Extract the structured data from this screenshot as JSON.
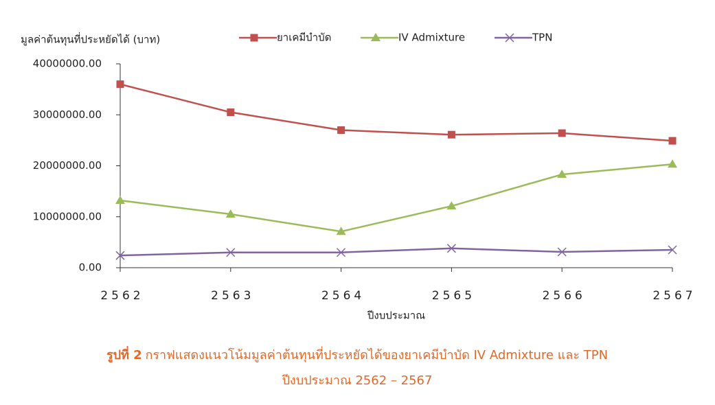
{
  "chart_data": {
    "type": "line",
    "y_label": "มูลค่าต้นทุนที่ประหยัดได้ (บาท)",
    "x_label": "ปีงบประมาณ",
    "categories": [
      "2562",
      "2563",
      "2564",
      "2565",
      "2566",
      "2567"
    ],
    "series": [
      {
        "name": "ยาเคมีบำบัด",
        "color": "#c0504d",
        "marker": "square",
        "values": [
          36000000,
          30500000,
          27000000,
          26100000,
          26400000,
          24900000
        ]
      },
      {
        "name": "IV Admixture",
        "color": "#9bbb59",
        "marker": "triangle",
        "values": [
          13200000,
          10500000,
          7100000,
          12100000,
          18300000,
          20300000
        ]
      },
      {
        "name": "TPN",
        "color": "#8064a2",
        "marker": "x",
        "values": [
          2400000,
          3000000,
          3000000,
          3800000,
          3100000,
          3500000
        ]
      }
    ],
    "ylim": [
      0,
      40000000
    ],
    "yticks": [
      {
        "value": 0,
        "label": "0.00"
      },
      {
        "value": 10000000,
        "label": "10000000.00"
      },
      {
        "value": 20000000,
        "label": "20000000.00"
      },
      {
        "value": 30000000,
        "label": "30000000.00"
      },
      {
        "value": 40000000,
        "label": "40000000.00"
      }
    ],
    "legend": "top",
    "caption": {
      "label": "รูปที่ 2",
      "line1": "กราฟแสดงแนวโน้มมูลค่าต้นทุนที่ประหยัดได้ของยาเคมีบำบัด IV Admixture และ TPN",
      "line2": "ปีงบประมาณ 2562 – 2567"
    }
  }
}
